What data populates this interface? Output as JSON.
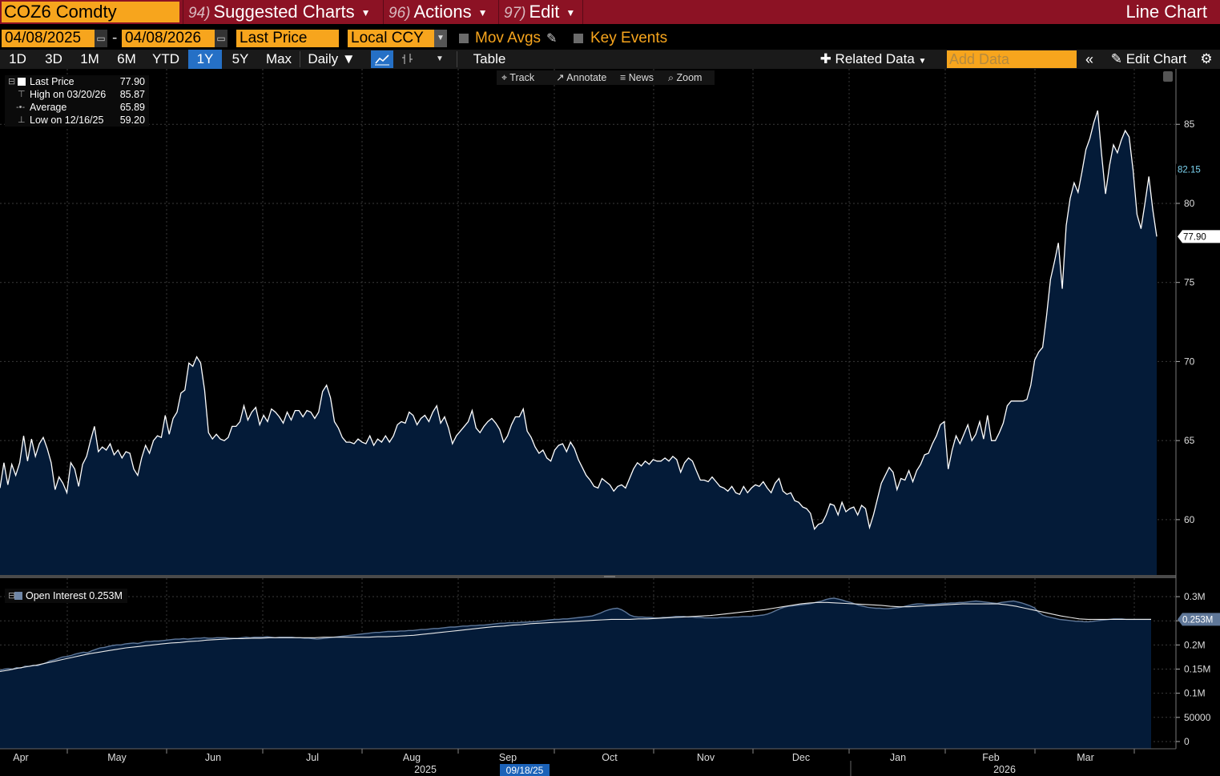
{
  "header": {
    "ticker": "COZ6 Comdty",
    "menus": [
      {
        "num": "94)",
        "label": "Suggested Charts"
      },
      {
        "num": "96)",
        "label": "Actions"
      },
      {
        "num": "97)",
        "label": "Edit"
      }
    ],
    "title": "Line Chart"
  },
  "controls": {
    "start_date": "04/08/2025",
    "end_date": "04/08/2026",
    "dash": "-",
    "field": "Last Price",
    "currency": "Local CCY",
    "mov_avgs": "Mov Avgs",
    "key_events": "Key Events"
  },
  "periods": [
    "1D",
    "3D",
    "1M",
    "6M",
    "YTD",
    "1Y",
    "5Y",
    "Max"
  ],
  "active_period": "1Y",
  "frequency": "Daily",
  "table_label": "Table",
  "related_data": "Related Data",
  "add_data_placeholder": "Add Data",
  "edit_chart": "Edit Chart",
  "chart_tools": [
    "Track",
    "Annotate",
    "News",
    "Zoom"
  ],
  "legend": {
    "rows": [
      {
        "label": "Last Price",
        "value": "77.90"
      },
      {
        "label": "High on 03/20/26",
        "value": "85.87"
      },
      {
        "label": "Average",
        "value": "65.89"
      },
      {
        "label": "Low on 12/16/25",
        "value": "59.20"
      }
    ]
  },
  "price_axis": {
    "ticks": [
      {
        "v": 85,
        "label": "85"
      },
      {
        "v": 80,
        "label": "80"
      },
      {
        "v": 75,
        "label": "75"
      },
      {
        "v": 70,
        "label": "70"
      },
      {
        "v": 65,
        "label": "65"
      },
      {
        "v": 60,
        "label": "60"
      }
    ],
    "tag_high": "82.15",
    "tag_high_value": 82.15,
    "tag_last": "77.90",
    "tag_last_value": 77.9
  },
  "oi_legend": "Open Interest 0.253M",
  "oi_axis": {
    "ticks": [
      {
        "v": 300000,
        "label": "0.3M"
      },
      {
        "v": 250000,
        "label": "0.25M"
      },
      {
        "v": 200000,
        "label": "0.2M"
      },
      {
        "v": 150000,
        "label": "0.15M"
      },
      {
        "v": 100000,
        "label": "0.1M"
      },
      {
        "v": 50000,
        "label": "50000"
      },
      {
        "v": 0,
        "label": "0"
      }
    ],
    "tag": "0.253M",
    "tag_value": 253000
  },
  "x_axis": {
    "months": [
      "Apr",
      "May",
      "Jun",
      "Jul",
      "Aug",
      "Sep",
      "Oct",
      "Nov",
      "Dec",
      "Jan",
      "Feb",
      "Mar"
    ],
    "years": [
      {
        "label": "2025",
        "month_index": 4
      },
      {
        "label": "2026",
        "month_index": 10
      }
    ],
    "cursor_date": "09/18/25"
  },
  "chart_data": [
    {
      "type": "area",
      "series": [
        {
          "name": "Last Price"
        }
      ],
      "x_start": "2025-04-08",
      "x_end": "2026-04-08",
      "ylim": [
        56.5,
        88
      ],
      "values": [
        62.0,
        63.6,
        62.2,
        63.5,
        62.8,
        63.6,
        65.3,
        63.7,
        65.1,
        64.0,
        64.8,
        65.2,
        64.5,
        63.6,
        61.9,
        62.7,
        62.3,
        61.7,
        63.6,
        63.2,
        62.1,
        63.5,
        64.0,
        65.0,
        65.9,
        64.3,
        64.6,
        64.4,
        64.8,
        64.1,
        64.4,
        63.9,
        64.3,
        64.2,
        63.2,
        62.8,
        63.9,
        64.7,
        64.2,
        65.0,
        65.3,
        65.2,
        66.6,
        65.4,
        66.4,
        66.8,
        68.0,
        68.2,
        69.9,
        69.7,
        70.3,
        69.9,
        68.2,
        65.5,
        65.1,
        65.4,
        65.1,
        65.0,
        65.2,
        65.9,
        65.9,
        66.2,
        67.2,
        66.3,
        66.8,
        67.1,
        66.0,
        66.6,
        66.2,
        67.0,
        66.8,
        66.5,
        66.1,
        66.8,
        66.3,
        66.9,
        66.9,
        66.5,
        66.9,
        66.8,
        66.4,
        66.8,
        68.1,
        68.5,
        67.7,
        66.2,
        65.8,
        65.2,
        64.9,
        64.9,
        64.8,
        65.1,
        64.9,
        64.8,
        65.3,
        64.7,
        65.1,
        64.9,
        65.3,
        64.9,
        65.3,
        66.0,
        66.2,
        66.1,
        66.8,
        66.6,
        66.0,
        66.4,
        66.6,
        66.2,
        66.8,
        67.2,
        66.1,
        66.5,
        65.8,
        64.8,
        65.3,
        65.6,
        65.9,
        66.2,
        66.9,
        65.8,
        65.5,
        65.9,
        66.2,
        66.4,
        66.1,
        65.7,
        64.9,
        65.3,
        66.0,
        66.5,
        66.5,
        67.0,
        65.6,
        65.2,
        64.6,
        64.2,
        64.4,
        63.9,
        63.7,
        64.4,
        64.7,
        64.8,
        64.3,
        64.9,
        64.5,
        63.8,
        63.3,
        62.8,
        62.5,
        62.1,
        62.0,
        62.6,
        62.4,
        62.2,
        61.8,
        62.1,
        62.2,
        62.0,
        62.6,
        63.2,
        63.6,
        63.4,
        63.7,
        63.5,
        63.8,
        63.7,
        63.7,
        63.9,
        63.7,
        64.0,
        63.8,
        63.0,
        63.6,
        63.9,
        63.7,
        63.1,
        62.5,
        62.5,
        62.4,
        62.7,
        62.4,
        62.1,
        62.0,
        61.8,
        62.1,
        61.7,
        61.6,
        62.1,
        61.7,
        62.0,
        62.2,
        62.1,
        62.4,
        62.0,
        61.7,
        62.3,
        62.6,
        61.8,
        61.6,
        61.7,
        61.2,
        61.1,
        60.8,
        60.7,
        60.4,
        59.4,
        59.7,
        59.8,
        60.3,
        61.0,
        60.9,
        60.3,
        61.1,
        60.5,
        60.7,
        60.8,
        60.3,
        60.9,
        60.7,
        59.5,
        60.3,
        61.3,
        62.3,
        62.8,
        63.3,
        63.0,
        61.9,
        62.6,
        62.5,
        63.1,
        62.4,
        63.1,
        63.5,
        64.1,
        64.2,
        64.8,
        65.3,
        66.0,
        66.2,
        63.2,
        64.4,
        65.3,
        64.8,
        65.4,
        66.0,
        65.0,
        65.4,
        66.2,
        65.1,
        66.6,
        65.0,
        65.0,
        65.5,
        66.1,
        67.2,
        67.5,
        67.5,
        67.5,
        67.5,
        67.6,
        68.5,
        70.1,
        70.6,
        70.9,
        72.9,
        75.2,
        76.3,
        77.5,
        74.6,
        78.6,
        80.3,
        81.3,
        80.7,
        82.0,
        83.4,
        84.1,
        85.1,
        85.87,
        83.1,
        80.6,
        82.4,
        83.7,
        83.2,
        84.0,
        84.6,
        84.2,
        82.1,
        79.3,
        78.4,
        80.0,
        81.7,
        79.6,
        77.9
      ]
    },
    {
      "type": "area",
      "series": [
        {
          "name": "Open Interest"
        }
      ],
      "ylim": [
        -15000,
        315000
      ],
      "values": [
        147000,
        150000,
        151000,
        150000,
        153000,
        152000,
        156000,
        156000,
        158000,
        157000,
        160000,
        163000,
        167000,
        169000,
        172000,
        175000,
        176000,
        178000,
        181000,
        183000,
        185000,
        184000,
        188000,
        191000,
        194000,
        195000,
        197000,
        199000,
        200000,
        200000,
        202000,
        203000,
        204000,
        203000,
        205000,
        207000,
        207000,
        208000,
        208000,
        209000,
        210000,
        211000,
        212000,
        212000,
        213000,
        212000,
        213000,
        214000,
        214000,
        215000,
        214000,
        214000,
        215000,
        215000,
        215000,
        214000,
        214000,
        214000,
        215000,
        216000,
        215000,
        216000,
        216000,
        216000,
        217000,
        216000,
        215000,
        216000,
        216000,
        216000,
        216000,
        215000,
        215000,
        214000,
        214000,
        213000,
        212000,
        213000,
        214000,
        215000,
        216000,
        217000,
        218000,
        219000,
        220000,
        221000,
        222000,
        223000,
        224000,
        225000,
        226000,
        226000,
        227000,
        228000,
        228000,
        228000,
        229000,
        229000,
        230000,
        230000,
        231000,
        232000,
        232000,
        233000,
        234000,
        234000,
        235000,
        236000,
        237000,
        237000,
        238000,
        239000,
        239000,
        240000,
        240000,
        241000,
        241000,
        242000,
        243000,
        244000,
        245000,
        245000,
        246000,
        246000,
        246000,
        247000,
        247000,
        248000,
        248000,
        249000,
        250000,
        251000,
        252000,
        253000,
        253000,
        254000,
        254000,
        255000,
        256000,
        257000,
        258000,
        259000,
        260000,
        263000,
        266000,
        270000,
        273000,
        275000,
        276000,
        273000,
        268000,
        262000,
        259000,
        258000,
        258000,
        257000,
        257000,
        256000,
        256000,
        257000,
        257000,
        258000,
        259000,
        259000,
        259000,
        258000,
        258000,
        257000,
        257000,
        256000,
        256000,
        256000,
        256000,
        257000,
        257000,
        257000,
        258000,
        258000,
        259000,
        259000,
        259000,
        260000,
        261000,
        262000,
        264000,
        267000,
        271000,
        275000,
        278000,
        280000,
        281000,
        282000,
        283000,
        284000,
        285000,
        287000,
        289000,
        291000,
        294000,
        296000,
        297000,
        295000,
        293000,
        290000,
        288000,
        285000,
        282000,
        280000,
        278000,
        277000,
        276000,
        276000,
        275000,
        275000,
        276000,
        277000,
        278000,
        280000,
        282000,
        284000,
        285000,
        285000,
        284000,
        284000,
        284000,
        285000,
        286000,
        286000,
        287000,
        287000,
        288000,
        288000,
        289000,
        290000,
        291000,
        290000,
        289000,
        288000,
        287000,
        286000,
        288000,
        289000,
        290000,
        291000,
        289000,
        287000,
        284000,
        281000,
        277000,
        268000,
        262000,
        259000,
        257000,
        255000,
        253000,
        252000,
        251000,
        250000,
        249000,
        249000,
        248000,
        248000,
        249000,
        250000,
        251000,
        252000,
        253000,
        254000,
        254000,
        254000,
        253000,
        253000,
        253000,
        253000,
        253000,
        253000,
        253000
      ],
      "ma_values": [
        145000,
        148000,
        152000,
        155000,
        158000,
        162000,
        166000,
        170000,
        174000,
        178000,
        182000,
        185000,
        188000,
        191000,
        194000,
        196000,
        198000,
        200000,
        202000,
        204000,
        205000,
        207000,
        208000,
        210000,
        211000,
        212000,
        213000,
        213000,
        214000,
        214000,
        215000,
        215000,
        215000,
        215000,
        215000,
        215000,
        216000,
        216000,
        216000,
        216000,
        216000,
        216000,
        217000,
        217000,
        218000,
        219000,
        220000,
        222000,
        224000,
        226000,
        228000,
        230000,
        232000,
        234000,
        236000,
        238000,
        239000,
        241000,
        242000,
        244000,
        245000,
        246000,
        247000,
        248000,
        249000,
        250000,
        251000,
        252000,
        253000,
        253000,
        253000,
        254000,
        254000,
        255000,
        256000,
        257000,
        258000,
        259000,
        260000,
        261000,
        263000,
        265000,
        267000,
        269000,
        271000,
        273000,
        276000,
        279000,
        282000,
        285000,
        287000,
        288000,
        288000,
        287000,
        286000,
        285000,
        284000,
        283000,
        282000,
        280000,
        279000,
        279000,
        280000,
        281000,
        282000,
        283000,
        284000,
        285000,
        285000,
        285000,
        285000,
        285000,
        283000,
        280000,
        276000,
        272000,
        268000,
        264000,
        260000,
        257000,
        254000,
        253000,
        253000,
        253000,
        253000,
        253000,
        253000,
        253000,
        253000
      ]
    }
  ]
}
